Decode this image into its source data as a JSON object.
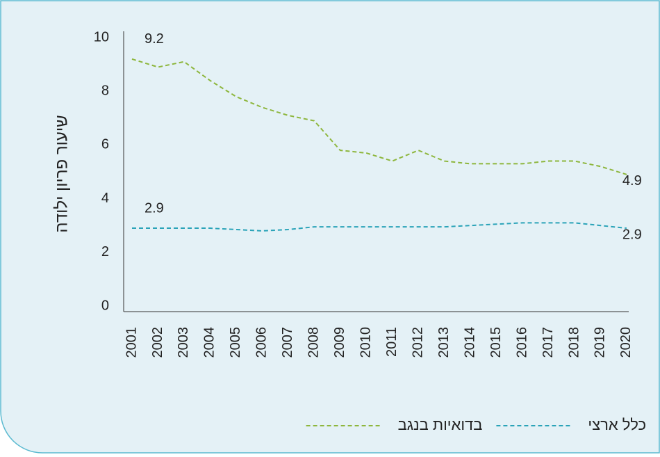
{
  "chart_data": {
    "type": "line",
    "y_label": "שיעור פריון ילודה",
    "categories": [
      "2001",
      "2002",
      "2003",
      "2004",
      "2005",
      "2006",
      "2007",
      "2008",
      "2009",
      "2010",
      "2011",
      "2012",
      "2013",
      "2014",
      "2015",
      "2016",
      "2017",
      "2018",
      "2019",
      "2020"
    ],
    "series": [
      {
        "name": "בדואיות בנגב",
        "color": "#8db63c",
        "values": [
          9.2,
          8.9,
          9.1,
          8.4,
          7.8,
          7.4,
          7.1,
          6.9,
          5.8,
          5.7,
          5.4,
          5.8,
          5.4,
          5.3,
          5.3,
          5.3,
          5.4,
          5.4,
          5.2,
          4.9
        ],
        "value_labels": [
          "9.2",
          null,
          null,
          null,
          null,
          null,
          null,
          null,
          null,
          null,
          null,
          null,
          null,
          null,
          null,
          null,
          null,
          null,
          null,
          "4.9"
        ]
      },
      {
        "name": "כלל ארצי",
        "color": "#2aa3b8",
        "values": [
          2.9,
          2.9,
          2.9,
          2.9,
          2.85,
          2.8,
          2.85,
          2.95,
          2.95,
          2.95,
          2.95,
          2.95,
          2.95,
          3.0,
          3.05,
          3.1,
          3.1,
          3.1,
          3.0,
          2.9
        ],
        "value_labels": [
          "2.9",
          null,
          null,
          null,
          null,
          null,
          null,
          null,
          null,
          null,
          null,
          null,
          null,
          null,
          null,
          null,
          null,
          null,
          null,
          "2.9"
        ]
      }
    ],
    "ylim": [
      0,
      10
    ],
    "yticks": [
      0,
      2,
      4,
      6,
      8,
      10
    ]
  }
}
